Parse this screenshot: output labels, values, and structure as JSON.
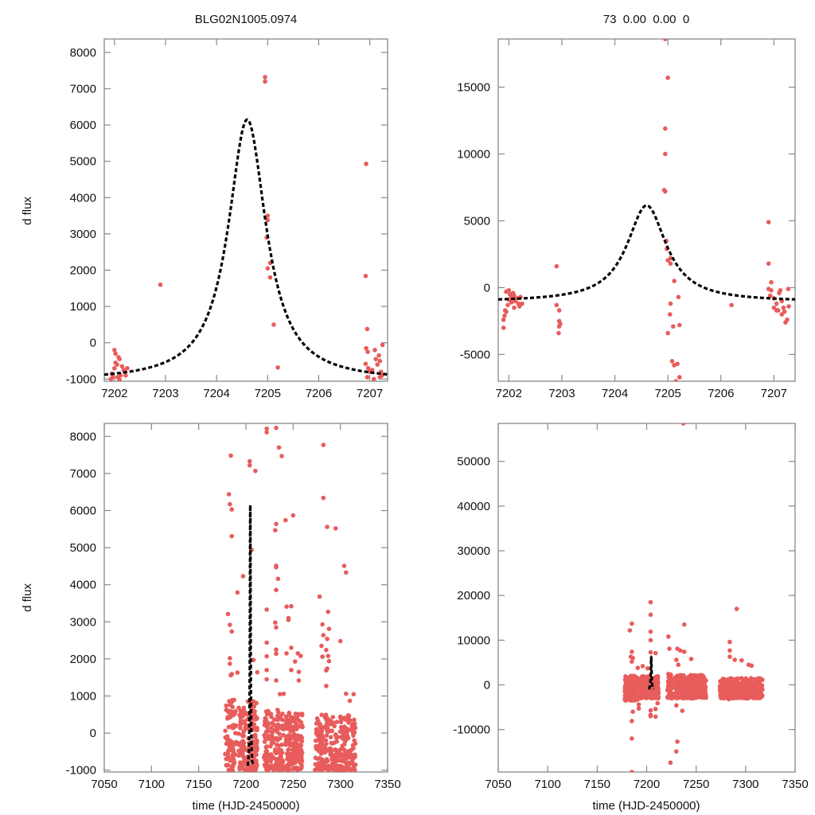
{
  "figure": {
    "colors": {
      "points": "#e85c5c",
      "model": "#000000",
      "frame": "#888888"
    }
  },
  "chart_data": [
    {
      "type": "scatter",
      "panel": "top-left",
      "title": "BLG02N1005.0974",
      "xlabel": "",
      "ylabel": "d flux",
      "xlim": [
        7201.8,
        7207.35
      ],
      "ylim": [
        -1060,
        8370
      ],
      "xticks": [
        7202,
        7203,
        7204,
        7205,
        7206,
        7207
      ],
      "yticks": [
        -1000,
        0,
        1000,
        2000,
        3000,
        4000,
        5000,
        6000,
        7000,
        8000
      ],
      "model": {
        "name": "fit",
        "style": "dashed",
        "t0": 7204.6,
        "peak": 6150,
        "base": -1060,
        "width": 0.45
      },
      "points": [
        [
          7201.95,
          -850
        ],
        [
          7201.97,
          -950
        ],
        [
          7202.0,
          -200
        ],
        [
          7202.02,
          -300
        ],
        [
          7202.05,
          -600
        ],
        [
          7202.0,
          -700
        ],
        [
          7202.08,
          -400
        ],
        [
          7202.1,
          -450
        ],
        [
          7202.12,
          -900
        ],
        [
          7202.15,
          -650
        ],
        [
          7201.93,
          -1000
        ],
        [
          7202.18,
          -750
        ],
        [
          7202.2,
          -800
        ],
        [
          7202.22,
          -900
        ],
        [
          7202.06,
          -950
        ],
        [
          7202.25,
          -700
        ],
        [
          7202.02,
          -550
        ],
        [
          7202.1,
          -1020
        ],
        [
          7202.9,
          1600
        ],
        [
          7204.95,
          7320
        ],
        [
          7204.95,
          7200
        ],
        [
          7205.0,
          3500
        ],
        [
          7205.0,
          3380
        ],
        [
          7204.98,
          2900
        ],
        [
          7205.0,
          2050
        ],
        [
          7205.05,
          2200
        ],
        [
          7205.05,
          1800
        ],
        [
          7205.12,
          500
        ],
        [
          7205.2,
          -680
        ],
        [
          7206.93,
          4930
        ],
        [
          7206.92,
          1840
        ],
        [
          7206.95,
          380
        ],
        [
          7206.93,
          -150
        ],
        [
          7206.96,
          -250
        ],
        [
          7206.92,
          -580
        ],
        [
          7206.97,
          -700
        ],
        [
          7207.0,
          -800
        ],
        [
          7207.05,
          -750
        ],
        [
          7207.1,
          -200
        ],
        [
          7207.12,
          -450
        ],
        [
          7207.15,
          -600
        ],
        [
          7207.18,
          -350
        ],
        [
          7207.2,
          -500
        ],
        [
          7207.22,
          -800
        ],
        [
          7207.25,
          -60
        ],
        [
          7207.24,
          -900
        ],
        [
          7206.95,
          -950
        ],
        [
          7207.08,
          -1000
        ],
        [
          7207.2,
          -950
        ]
      ]
    },
    {
      "type": "scatter",
      "panel": "top-right",
      "title": "73  0.00  0.00  0",
      "xlabel": "",
      "ylabel": "",
      "xlim": [
        7201.8,
        7207.4
      ],
      "ylim": [
        -7000,
        18600
      ],
      "xticks": [
        7202,
        7203,
        7204,
        7205,
        7206,
        7207
      ],
      "yticks": [
        -5000,
        0,
        5000,
        10000,
        15000
      ],
      "model": {
        "name": "fit",
        "style": "dashed",
        "t0": 7204.6,
        "peak": 6150,
        "base": -1060,
        "width": 0.45
      },
      "points": [
        [
          7201.9,
          -3000
        ],
        [
          7201.9,
          -2400
        ],
        [
          7201.92,
          -2100
        ],
        [
          7201.93,
          -1700
        ],
        [
          7201.95,
          -1800
        ],
        [
          7201.95,
          -300
        ],
        [
          7202.0,
          -200
        ],
        [
          7202.02,
          -500
        ],
        [
          7202.05,
          -700
        ],
        [
          7202.0,
          -900
        ],
        [
          7202.08,
          -400
        ],
        [
          7202.1,
          -600
        ],
        [
          7202.12,
          -1000
        ],
        [
          7202.15,
          -800
        ],
        [
          7202.18,
          -1200
        ],
        [
          7202.2,
          -1400
        ],
        [
          7202.22,
          -700
        ],
        [
          7202.05,
          -1100
        ],
        [
          7201.98,
          -1300
        ],
        [
          7202.1,
          -1500
        ],
        [
          7202.25,
          -1200
        ],
        [
          7202.9,
          1600
        ],
        [
          7202.9,
          -1300
        ],
        [
          7202.95,
          -1700
        ],
        [
          7202.95,
          -2500
        ],
        [
          7202.95,
          -2900
        ],
        [
          7202.94,
          -3400
        ],
        [
          7202.97,
          -2700
        ],
        [
          7204.95,
          18600
        ],
        [
          7205.0,
          15700
        ],
        [
          7204.95,
          11900
        ],
        [
          7204.95,
          10000
        ],
        [
          7204.93,
          7300
        ],
        [
          7204.95,
          7200
        ],
        [
          7204.97,
          3500
        ],
        [
          7204.98,
          2900
        ],
        [
          7205.0,
          2050
        ],
        [
          7205.05,
          2200
        ],
        [
          7205.05,
          1800
        ],
        [
          7205.12,
          500
        ],
        [
          7205.2,
          -700
        ],
        [
          7205.05,
          -1200
        ],
        [
          7205.04,
          -2000
        ],
        [
          7205.1,
          -2900
        ],
        [
          7205.22,
          -2800
        ],
        [
          7205.0,
          -3400
        ],
        [
          7205.08,
          -5500
        ],
        [
          7205.12,
          -5800
        ],
        [
          7205.18,
          -5700
        ],
        [
          7205.22,
          -6700
        ],
        [
          7205.15,
          -7000
        ],
        [
          7206.2,
          -1300
        ],
        [
          7206.9,
          4900
        ],
        [
          7206.9,
          1800
        ],
        [
          7206.95,
          400
        ],
        [
          7206.9,
          -100
        ],
        [
          7206.95,
          -200
        ],
        [
          7206.93,
          -600
        ],
        [
          7207.0,
          -800
        ],
        [
          7207.05,
          -1200
        ],
        [
          7207.08,
          -1700
        ],
        [
          7207.1,
          -400
        ],
        [
          7207.12,
          -200
        ],
        [
          7207.15,
          -1000
        ],
        [
          7207.18,
          -1500
        ],
        [
          7207.2,
          -1800
        ],
        [
          7207.22,
          -2600
        ],
        [
          7207.25,
          -2400
        ],
        [
          7207.28,
          -1400
        ],
        [
          7207.27,
          -100
        ],
        [
          7207.05,
          -1700
        ],
        [
          7207.0,
          -1500
        ],
        [
          7207.15,
          -2000
        ]
      ]
    },
    {
      "type": "scatter",
      "panel": "bottom-left",
      "title": "",
      "xlabel": "time (HJD-2450000)",
      "ylabel": "d flux",
      "xlim": [
        7050,
        7350
      ],
      "ylim": [
        -1050,
        8350
      ],
      "xticks": [
        7050,
        7100,
        7150,
        7200,
        7250,
        7300,
        7350
      ],
      "yticks": [
        -1000,
        0,
        1000,
        2000,
        3000,
        4000,
        5000,
        6000,
        7000,
        8000
      ],
      "model": {
        "name": "fit",
        "style": "dashed",
        "t0": 7204.6,
        "peak": 6150,
        "base": -1060,
        "width": 0.45
      },
      "clusters": [
        {
          "range": [
            7178,
            7190
          ],
          "ymin": -1000,
          "ymax": 900,
          "count": 90
        },
        {
          "range": [
            7192,
            7200
          ],
          "ymin": -1000,
          "ymax": 700,
          "count": 60
        },
        {
          "range": [
            7201,
            7212
          ],
          "ymin": -1000,
          "ymax": 900,
          "count": 110
        },
        {
          "range": [
            7219,
            7224
          ],
          "ymin": -1000,
          "ymax": 600,
          "count": 50
        },
        {
          "range": [
            7226,
            7240
          ],
          "ymin": -1000,
          "ymax": 700,
          "count": 90
        },
        {
          "range": [
            7242,
            7260
          ],
          "ymin": -1000,
          "ymax": 600,
          "count": 170
        },
        {
          "range": [
            7273,
            7316
          ],
          "ymin": -1000,
          "ymax": 500,
          "count": 300
        }
      ],
      "points": [
        [
          7184,
          7480
        ],
        [
          7182,
          6440
        ],
        [
          7183,
          6170
        ],
        [
          7185,
          6030
        ],
        [
          7185,
          5310
        ],
        [
          7181,
          3210
        ],
        [
          7183,
          2920
        ],
        [
          7185,
          2740
        ],
        [
          7183,
          2020
        ],
        [
          7183,
          1870
        ],
        [
          7184,
          1560
        ],
        [
          7185,
          1590
        ],
        [
          7191,
          3790
        ],
        [
          7197,
          4230
        ],
        [
          7191,
          1630
        ],
        [
          7204,
          7330
        ],
        [
          7204,
          7220
        ],
        [
          7210,
          7070
        ],
        [
          7206,
          4940
        ],
        [
          7208,
          1970
        ],
        [
          7212,
          1640
        ],
        [
          7222,
          8210
        ],
        [
          7222,
          8110
        ],
        [
          7232,
          8230
        ],
        [
          7235,
          7700
        ],
        [
          7238,
          7470
        ],
        [
          7232,
          5640
        ],
        [
          7231,
          5470
        ],
        [
          7242,
          5740
        ],
        [
          7250,
          5870
        ],
        [
          7232,
          4510
        ],
        [
          7232,
          4470
        ],
        [
          7234,
          4160
        ],
        [
          7232,
          3860
        ],
        [
          7243,
          3410
        ],
        [
          7248,
          3420
        ],
        [
          7222,
          3330
        ],
        [
          7231,
          2980
        ],
        [
          7232,
          2850
        ],
        [
          7245,
          3050
        ],
        [
          7245,
          3100
        ],
        [
          7222,
          2440
        ],
        [
          7222,
          2070
        ],
        [
          7232,
          2250
        ],
        [
          7232,
          2140
        ],
        [
          7243,
          2150
        ],
        [
          7248,
          2300
        ],
        [
          7255,
          2150
        ],
        [
          7258,
          2080
        ],
        [
          7252,
          1930
        ],
        [
          7248,
          1700
        ],
        [
          7256,
          1650
        ],
        [
          7222,
          1700
        ],
        [
          7222,
          1450
        ],
        [
          7232,
          1420
        ],
        [
          7240,
          1060
        ],
        [
          7236,
          1050
        ],
        [
          7256,
          1420
        ],
        [
          7282,
          7770
        ],
        [
          7282,
          6340
        ],
        [
          7286,
          5560
        ],
        [
          7295,
          5520
        ],
        [
          7304,
          4510
        ],
        [
          7306,
          4330
        ],
        [
          7278,
          3680
        ],
        [
          7287,
          3270
        ],
        [
          7281,
          2930
        ],
        [
          7282,
          2640
        ],
        [
          7288,
          2810
        ],
        [
          7286,
          2540
        ],
        [
          7285,
          2240
        ],
        [
          7287,
          2080
        ],
        [
          7280,
          2350
        ],
        [
          7281,
          2060
        ],
        [
          7288,
          1940
        ],
        [
          7286,
          1740
        ],
        [
          7285,
          1690
        ],
        [
          7285,
          1270
        ],
        [
          7300,
          2480
        ],
        [
          7306,
          1060
        ],
        [
          7314,
          1050
        ],
        [
          7310,
          870
        ]
      ]
    },
    {
      "type": "scatter",
      "panel": "bottom-right",
      "title": "",
      "xlabel": "time (HJD-2450000)",
      "ylabel": "",
      "xlim": [
        7050,
        7350
      ],
      "ylim": [
        -19500,
        58500
      ],
      "xticks": [
        7050,
        7100,
        7150,
        7200,
        7250,
        7300,
        7350
      ],
      "yticks": [
        -10000,
        0,
        10000,
        20000,
        30000,
        40000,
        50000
      ],
      "model": {
        "name": "fit",
        "style": "dashed",
        "t0": 7204.6,
        "peak": 6150,
        "base": -1060,
        "width": 0.45
      },
      "clusters": [
        {
          "range": [
            7178,
            7191
          ],
          "ymin": -3500,
          "ymax": 2000,
          "count": 220
        },
        {
          "range": [
            7193,
            7212
          ],
          "ymin": -3000,
          "ymax": 2000,
          "count": 280
        },
        {
          "range": [
            7221,
            7226
          ],
          "ymin": -3000,
          "ymax": 2500,
          "count": 60
        },
        {
          "range": [
            7228,
            7260
          ],
          "ymin": -3000,
          "ymax": 2200,
          "count": 320
        },
        {
          "range": [
            7274,
            7317
          ],
          "ymin": -3000,
          "ymax": 1500,
          "count": 420
        }
      ],
      "points": [
        [
          7237,
          58500
        ],
        [
          7204,
          18500
        ],
        [
          7204,
          15700
        ],
        [
          7204,
          11900
        ],
        [
          7204,
          10000
        ],
        [
          7204,
          7300
        ],
        [
          7183,
          12200
        ],
        [
          7185,
          13700
        ],
        [
          7185,
          7400
        ],
        [
          7184,
          6300
        ],
        [
          7186,
          6000
        ],
        [
          7185,
          5200
        ],
        [
          7191,
          3800
        ],
        [
          7196,
          4200
        ],
        [
          7201,
          3700
        ],
        [
          7209,
          7100
        ],
        [
          7222,
          10800
        ],
        [
          7223,
          8100
        ],
        [
          7231,
          8100
        ],
        [
          7234,
          7700
        ],
        [
          7238,
          7400
        ],
        [
          7232,
          4500
        ],
        [
          7230,
          5600
        ],
        [
          7245,
          5800
        ],
        [
          7238,
          13500
        ],
        [
          7291,
          17000
        ],
        [
          7284,
          9600
        ],
        [
          7284,
          7700
        ],
        [
          7284,
          6300
        ],
        [
          7289,
          5600
        ],
        [
          7296,
          5500
        ],
        [
          7303,
          4500
        ],
        [
          7306,
          4300
        ],
        [
          7186,
          -6000
        ],
        [
          7185,
          -8100
        ],
        [
          7185,
          -12000
        ],
        [
          7185,
          -19500
        ],
        [
          7192,
          -4400
        ],
        [
          7192,
          -5300
        ],
        [
          7204,
          -5700
        ],
        [
          7204,
          -6700
        ],
        [
          7204,
          -7000
        ],
        [
          7209,
          -5400
        ],
        [
          7209,
          -7100
        ],
        [
          7211,
          -4100
        ],
        [
          7231,
          -12700
        ],
        [
          7230,
          -14900
        ],
        [
          7224,
          -17400
        ],
        [
          7236,
          -5800
        ],
        [
          7230,
          -4600
        ],
        [
          7283,
          -3200
        ]
      ]
    }
  ]
}
